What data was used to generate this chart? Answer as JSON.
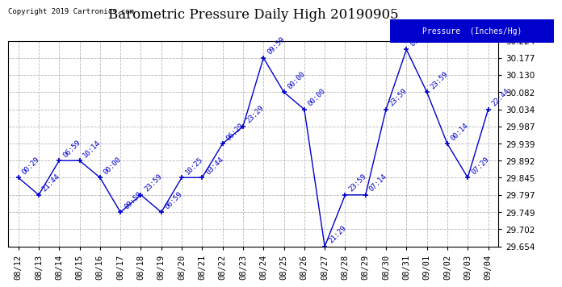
{
  "title": "Barometric Pressure Daily High 20190905",
  "copyright": "Copyright 2019 Cartronics.com",
  "legend_label": "Pressure  (Inches/Hg)",
  "points": [
    [
      "08/12",
      29.845,
      "00:29"
    ],
    [
      "08/13",
      29.797,
      "21:44"
    ],
    [
      "08/14",
      29.892,
      "06:59"
    ],
    [
      "08/15",
      29.892,
      "10:14"
    ],
    [
      "08/16",
      29.845,
      "00:00"
    ],
    [
      "08/17",
      29.749,
      "09:59"
    ],
    [
      "08/18",
      29.797,
      "23:59"
    ],
    [
      "08/19",
      29.749,
      "06:59"
    ],
    [
      "08/20",
      29.845,
      "10:25"
    ],
    [
      "08/21",
      29.845,
      "03:44"
    ],
    [
      "08/22",
      29.939,
      "06:29"
    ],
    [
      "08/23",
      29.987,
      "23:29"
    ],
    [
      "08/24",
      30.177,
      "09:59"
    ],
    [
      "08/25",
      30.082,
      "00:00"
    ],
    [
      "08/26",
      30.034,
      "00:00"
    ],
    [
      "08/27",
      29.654,
      "21:29"
    ],
    [
      "08/28",
      29.797,
      "23:59"
    ],
    [
      "08/29",
      29.797,
      "07:14"
    ],
    [
      "08/30",
      30.034,
      "23:59"
    ],
    [
      "08/31",
      30.2,
      "07:??"
    ],
    [
      "09/01",
      30.082,
      "23:59"
    ],
    [
      "09/02",
      29.939,
      "00:14"
    ],
    [
      "09/03",
      29.845,
      "07:29"
    ],
    [
      "09/04",
      30.034,
      "22:44"
    ]
  ],
  "line_color": "#0000cc",
  "bg_color": "#ffffff",
  "grid_color": "#b0b0b0",
  "ylim_min": 29.654,
  "ylim_max": 30.224,
  "yticks": [
    29.654,
    29.702,
    29.749,
    29.797,
    29.845,
    29.892,
    29.939,
    29.987,
    30.034,
    30.082,
    30.13,
    30.177,
    30.224
  ],
  "title_fontsize": 12,
  "annotation_fontsize": 6.5,
  "tick_fontsize": 7.5,
  "copyright_fontsize": 6.5
}
